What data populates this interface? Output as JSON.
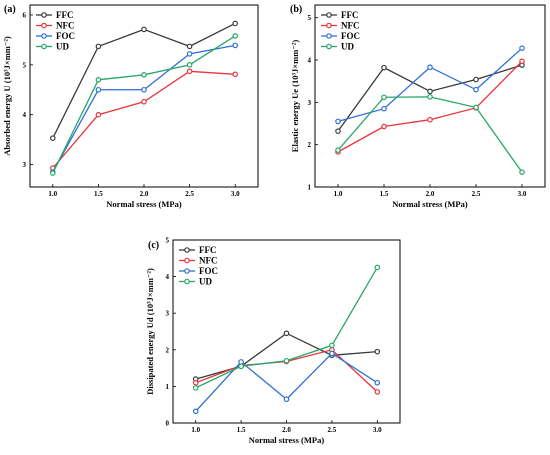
{
  "colors": {
    "FFC": "#3a3a3a",
    "NFC": "#e8353b",
    "FOC": "#2f6fd8",
    "UD": "#27a768",
    "frame": "#000000",
    "background": "#ffffff"
  },
  "chart_data": [
    {
      "type": "line",
      "panel_label": "(a)",
      "xlabel": "Normal stress (MPa)",
      "ylabel": "Absorbed energy  U  (10³J×mm⁻²)",
      "categories": [
        "1.0",
        "1.5",
        "2.0",
        "2.5",
        "3.0"
      ],
      "x": [
        1.0,
        1.5,
        2.0,
        2.5,
        3.0
      ],
      "xlim": [
        0.75,
        3.25
      ],
      "ylim": [
        2.55,
        6.2
      ],
      "yticks": [
        3,
        4,
        5,
        6
      ],
      "legend": "top-left",
      "grid": false,
      "series": [
        {
          "name": "FFC",
          "values": [
            3.53,
            5.37,
            5.71,
            5.37,
            5.83
          ]
        },
        {
          "name": "NFC",
          "values": [
            2.93,
            4.0,
            4.26,
            4.87,
            4.81
          ]
        },
        {
          "name": "FOC",
          "values": [
            2.85,
            4.5,
            4.5,
            5.22,
            5.39
          ]
        },
        {
          "name": "UD",
          "values": [
            2.83,
            4.7,
            4.8,
            5.0,
            5.58
          ]
        }
      ]
    },
    {
      "type": "line",
      "panel_label": "(b)",
      "xlabel": "Normal stress (MPa)",
      "ylabel": "Elastic energy  Ue  (10³J×mm⁻²)",
      "categories": [
        "1.0",
        "1.5",
        "2.0",
        "2.5",
        "3.0"
      ],
      "x": [
        1.0,
        1.5,
        2.0,
        2.5,
        3.0
      ],
      "xlim": [
        0.75,
        3.25
      ],
      "ylim": [
        1.0,
        5.3
      ],
      "yticks": [
        1,
        2,
        3,
        4,
        5
      ],
      "legend": "top-left",
      "grid": false,
      "series": [
        {
          "name": "FFC",
          "values": [
            2.32,
            3.82,
            3.26,
            3.54,
            3.88
          ]
        },
        {
          "name": "NFC",
          "values": [
            1.83,
            2.43,
            2.59,
            2.87,
            3.97
          ]
        },
        {
          "name": "FOC",
          "values": [
            2.55,
            2.85,
            3.83,
            3.3,
            4.28
          ]
        },
        {
          "name": "UD",
          "values": [
            1.87,
            3.12,
            3.13,
            2.88,
            1.35
          ]
        }
      ]
    },
    {
      "type": "line",
      "panel_label": "(c)",
      "xlabel": "Normal stress (MPa)",
      "ylabel": "Dissipated energy  Ud  (10³J×mm⁻²)",
      "categories": [
        "1.0",
        "1.5",
        "2.0",
        "2.5",
        "3.0"
      ],
      "x": [
        1.0,
        1.5,
        2.0,
        2.5,
        3.0
      ],
      "xlim": [
        0.75,
        3.25
      ],
      "ylim": [
        0.0,
        5.0
      ],
      "yticks": [
        0,
        1,
        2,
        3,
        4,
        5
      ],
      "legend": "top-left",
      "grid": false,
      "series": [
        {
          "name": "FFC",
          "values": [
            1.2,
            1.55,
            2.45,
            1.85,
            1.95
          ]
        },
        {
          "name": "NFC",
          "values": [
            1.1,
            1.57,
            1.68,
            2.0,
            0.85
          ]
        },
        {
          "name": "FOC",
          "values": [
            0.32,
            1.67,
            0.65,
            1.9,
            1.1
          ]
        },
        {
          "name": "UD",
          "values": [
            0.96,
            1.55,
            1.7,
            2.12,
            4.25
          ]
        }
      ]
    }
  ]
}
